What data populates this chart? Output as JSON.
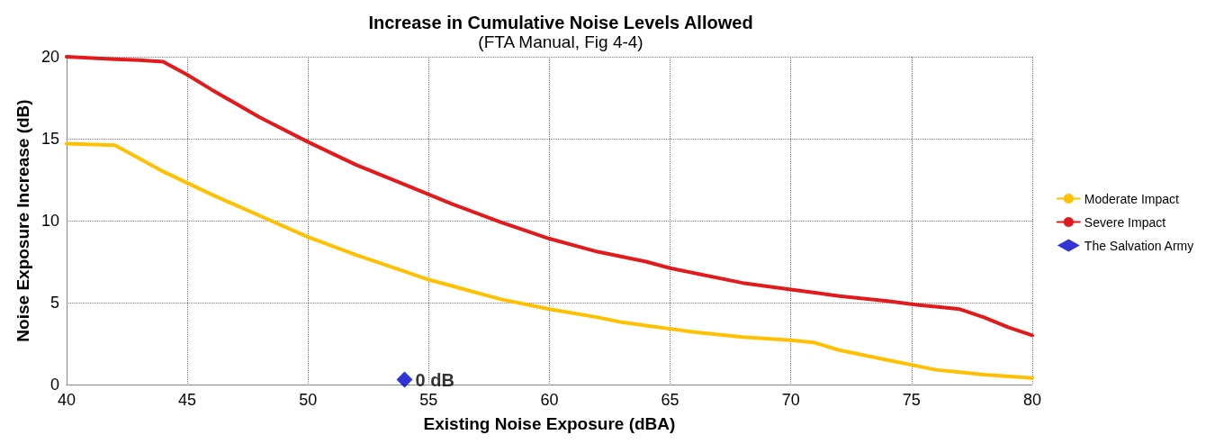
{
  "chart_data": {
    "type": "line",
    "title": "Increase in Cumulative Noise Levels Allowed",
    "subtitle": "(FTA Manual, Fig 4-4)",
    "xlabel": "Existing Noise Exposure (dBA)",
    "ylabel": "Noise Exposure Increase (dB)",
    "xlim": [
      40,
      80
    ],
    "xticks": [
      40,
      45,
      50,
      55,
      60,
      65,
      70,
      75,
      80
    ],
    "ylim": [
      0,
      20
    ],
    "yticks": [
      0,
      5,
      10,
      15,
      20
    ],
    "grid": true,
    "legend": "right",
    "marker": "none",
    "line_style": "solid",
    "series": [
      {
        "name": "Moderate Impact",
        "color": "#ffc000",
        "x": [
          40,
          42,
          43,
          44,
          46,
          48,
          50,
          52,
          54,
          55,
          56,
          58,
          60,
          62,
          63,
          64,
          65,
          66,
          68,
          70,
          71,
          72,
          74,
          75,
          76,
          77,
          78,
          80
        ],
        "values": [
          14.7,
          14.6,
          13.8,
          13.0,
          11.6,
          10.3,
          9.0,
          7.9,
          6.9,
          6.4,
          6.0,
          5.2,
          4.6,
          4.1,
          3.8,
          3.6,
          3.4,
          3.2,
          2.9,
          2.7,
          2.55,
          2.1,
          1.5,
          1.2,
          0.9,
          0.75,
          0.6,
          0.4
        ]
      },
      {
        "name": "Severe Impact",
        "color": "#e31a1c",
        "x": [
          40,
          42,
          43,
          44,
          45,
          46,
          48,
          50,
          52,
          54,
          55,
          56,
          58,
          60,
          62,
          64,
          65,
          66,
          68,
          70,
          71,
          72,
          74,
          75,
          76,
          77,
          78,
          79,
          80
        ],
        "values": [
          20,
          19.85,
          19.8,
          19.7,
          18.9,
          18.0,
          16.3,
          14.8,
          13.4,
          12.2,
          11.6,
          11.0,
          9.9,
          8.9,
          8.1,
          7.5,
          7.1,
          6.8,
          6.2,
          5.8,
          5.6,
          5.4,
          5.1,
          4.9,
          4.75,
          4.6,
          4.1,
          3.5,
          3.0
        ]
      },
      {
        "name": "The Salvation Army",
        "type": "scatter",
        "marker": "diamond",
        "color": "#0000cc",
        "x": [
          54
        ],
        "values": [
          0.3
        ]
      }
    ],
    "annotations": [
      {
        "text": "0 dB",
        "x": 54,
        "y": 0.3
      }
    ]
  }
}
